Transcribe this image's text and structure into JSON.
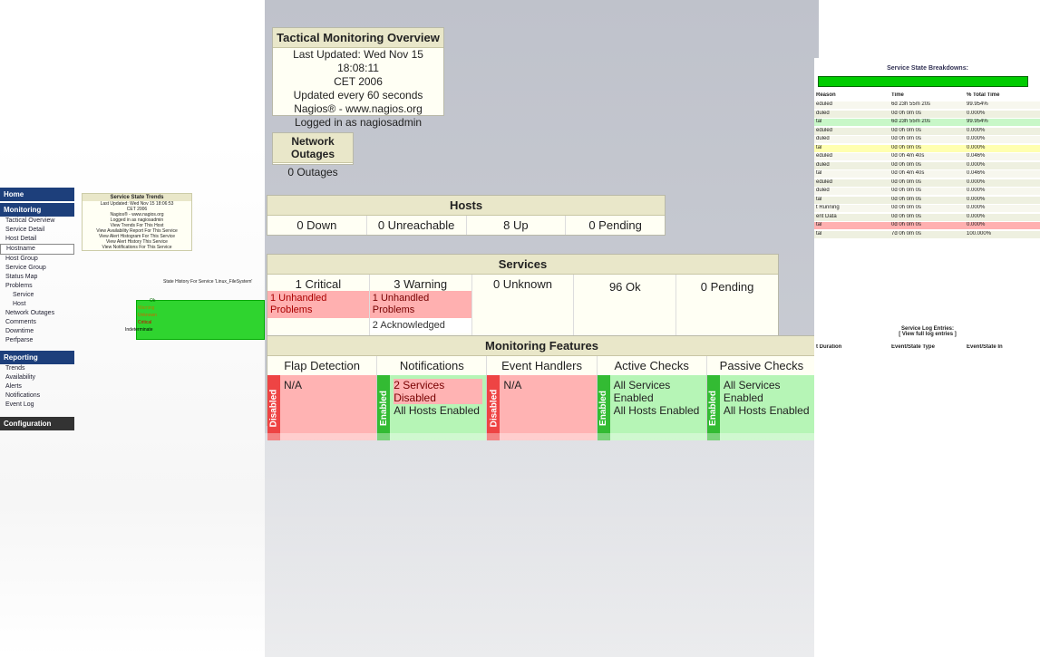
{
  "tactical": {
    "title": "Tactical Monitoring Overview",
    "lines": [
      "Last Updated: Wed Nov 15 18:08:11",
      "CET 2006",
      "Updated every 60 seconds",
      "Nagios® - www.nagios.org",
      "Logged in as nagiosadmin"
    ]
  },
  "outages": {
    "title": "Network Outages",
    "value": "0 Outages"
  },
  "hosts": {
    "title": "Hosts",
    "cells": [
      "0 Down",
      "0 Unreachable",
      "8 Up",
      "0 Pending"
    ]
  },
  "services": {
    "title": "Services",
    "cells": [
      "1 Critical",
      "3 Warning",
      "0 Unknown",
      "96 Ok",
      "0 Pending"
    ],
    "critical_sub": "1 Unhandled Problems",
    "warning_sub": [
      "1 Unhandled Problems",
      "2 Acknowledged"
    ]
  },
  "features": {
    "title": "Monitoring Features",
    "columns": [
      {
        "name": "Flap Detection",
        "state": "Disabled",
        "text": [
          "N/A"
        ]
      },
      {
        "name": "Notifications",
        "state": "Enabled",
        "text": [
          "2 Services Disabled",
          "All Hosts Enabled"
        ]
      },
      {
        "name": "Event Handlers",
        "state": "Disabled",
        "text": [
          "N/A"
        ]
      },
      {
        "name": "Active Checks",
        "state": "Enabled",
        "text": [
          "All Services Enabled",
          "All Hosts Enabled"
        ]
      },
      {
        "name": "Passive Checks",
        "state": "Enabled",
        "text": [
          "All Services Enabled",
          "All Hosts Enabled"
        ]
      }
    ]
  },
  "left_nav": {
    "home": "Home",
    "monitoring": "Monitoring",
    "items": [
      "Tactical Overview",
      "Service Detail",
      "Host Detail",
      "Hostname",
      "Host Group",
      "Service Group",
      "Status Map",
      "Problems",
      "Service",
      "Host",
      "Network Outages",
      "Comments",
      "Downtime",
      "Perfparse"
    ],
    "reporting": "Reporting",
    "report_items": [
      "Trends",
      "Availability",
      "Alerts",
      "Notifications",
      "Event Log"
    ],
    "configuration": "Configuration"
  },
  "trends": {
    "title": "Service State Trends",
    "lines": [
      "Last Updated: Wed Nov 15 18:06:53",
      "CET 2006",
      "Nagios® - www.nagios.org",
      "Logged in as nagiosadmin",
      "View Trends For This Host",
      "View Availability Report For This Service",
      "View Alert Histogram For This Service",
      "View Alert History This Service",
      "View Notifications For This Service"
    ],
    "state_labels": [
      "Ok",
      "Warning",
      "Unknown",
      "Critical",
      "Indeterminate"
    ],
    "chart_title": "State History For Service 'Linux_FileSystem'"
  },
  "right": {
    "breakdown_title": "Service State Breakdowns:",
    "headers": [
      "Reason",
      "Time",
      "% Total Time"
    ],
    "rows": [
      [
        "eduled",
        "6d 23h 55m 20s",
        "99.954%"
      ],
      [
        "duled",
        "0d 0h 0m 0s",
        "0.000%"
      ],
      [
        "tal",
        "6d 23h 55m 20s",
        "99.954%"
      ],
      [
        "eduled",
        "0d 0h 0m 0s",
        "0.000%"
      ],
      [
        "duled",
        "0d 0h 0m 0s",
        "0.000%"
      ],
      [
        "tal",
        "0d 0h 0m 0s",
        "0.000%"
      ],
      [
        "eduled",
        "0d 0h 4m 40s",
        "0.046%"
      ],
      [
        "duled",
        "0d 0h 0m 0s",
        "0.000%"
      ],
      [
        "tal",
        "0d 0h 4m 40s",
        "0.046%"
      ],
      [
        "eduled",
        "0d 0h 0m 0s",
        "0.000%"
      ],
      [
        "duled",
        "0d 0h 0m 0s",
        "0.000%"
      ],
      [
        "tal",
        "0d 0h 0m 0s",
        "0.000%"
      ],
      [
        "t Running",
        "0d 0h 0m 0s",
        "0.000%"
      ],
      [
        "ent Data",
        "0d 0h 0m 0s",
        "0.000%"
      ],
      [
        "tal",
        "0d 0h 0m 0s",
        "0.000%"
      ],
      [
        "tal",
        "7d 0h 0m 0s",
        "100.000%"
      ]
    ],
    "log_title": "Service Log Entries:",
    "log_sub": "[ View full log entries ]",
    "log_headers": [
      "t Duration",
      "Event/State Type",
      "Event/State In"
    ]
  }
}
